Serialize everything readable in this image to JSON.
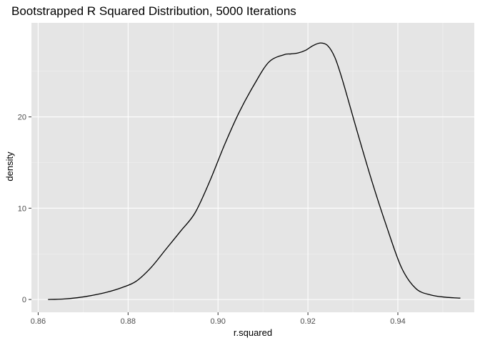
{
  "chart_data": {
    "type": "line",
    "title": "Bootstrapped R Squared Distribution, 5000 Iterations",
    "xlabel": "r.squared",
    "ylabel": "density",
    "xlim": [
      0.8585,
      0.957
    ],
    "ylim": [
      -1.4,
      30.3
    ],
    "x_ticks": [
      0.86,
      0.88,
      0.9,
      0.92,
      0.94
    ],
    "x_tick_labels": [
      "0.86",
      "0.88",
      "0.90",
      "0.92",
      "0.94"
    ],
    "y_ticks": [
      0,
      10,
      20
    ],
    "y_tick_labels": [
      "0",
      "10",
      "20"
    ],
    "grid": true,
    "series": [
      {
        "x": [
          0.8622,
          0.8655,
          0.8688,
          0.872,
          0.8753,
          0.8786,
          0.8818,
          0.8851,
          0.8884,
          0.8917,
          0.8949,
          0.8982,
          0.9015,
          0.9047,
          0.908,
          0.9113,
          0.9146,
          0.9162,
          0.9178,
          0.9195,
          0.9211,
          0.9228,
          0.9244,
          0.926,
          0.9277,
          0.9309,
          0.9342,
          0.9375,
          0.9408,
          0.944,
          0.9473,
          0.9506,
          0.9539
        ],
        "y": [
          0.0,
          0.05,
          0.2,
          0.45,
          0.8,
          1.3,
          2.0,
          3.5,
          5.5,
          7.5,
          9.5,
          13.0,
          17.0,
          20.5,
          23.5,
          26.0,
          26.8,
          26.9,
          27.0,
          27.3,
          27.8,
          28.1,
          27.8,
          26.5,
          24.0,
          18.5,
          13.0,
          8.0,
          3.5,
          1.2,
          0.5,
          0.25,
          0.15
        ]
      }
    ]
  }
}
